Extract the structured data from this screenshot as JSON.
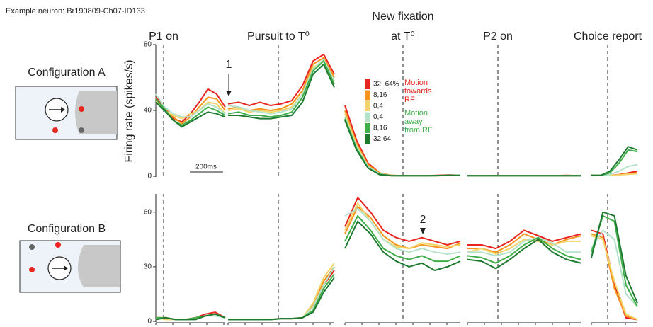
{
  "chart_data": {
    "type": "line",
    "note": "Example neuron: Br190809-Ch07-ID133",
    "ylabel": "Firing rate (spikes/s)",
    "scalebar": "200ms",
    "epochs": [
      {
        "title": [
          "P1 on"
        ]
      },
      {
        "title": [
          "Pursuit to T⁰"
        ]
      },
      {
        "title": [
          "New fixation",
          "at T⁰"
        ]
      },
      {
        "title": [
          "P2 on"
        ]
      },
      {
        "title": [
          "Choice report"
        ]
      }
    ],
    "series": [
      {
        "name": "32, 64%",
        "color": "#e8251f"
      },
      {
        "name": "8,16",
        "color": "#f7941d"
      },
      {
        "name": "0,4",
        "color": "#f3d46a"
      },
      {
        "name": "0,4",
        "color": "#b3e2c8"
      },
      {
        "name": "8,16",
        "color": "#3fae49"
      },
      {
        "name": "32,64",
        "color": "#1d7a30"
      }
    ],
    "legend_groups": [
      {
        "lines": [
          "Motion",
          "towards",
          "RF"
        ],
        "color": "#e8251f"
      },
      {
        "lines": [
          "Motion",
          "away",
          "from RF"
        ],
        "color": "#3fae49"
      }
    ],
    "annotations": [
      "1",
      "2"
    ],
    "rows": [
      {
        "label": "Configuration A",
        "ylim": [
          0,
          80
        ],
        "yticks": [
          0,
          40,
          80
        ],
        "panels": [
          [
            [
              48,
              42,
              35,
              33,
              38,
              45,
              53,
              50,
              42
            ],
            [
              47,
              41,
              36,
              32,
              36,
              42,
              48,
              47,
              40
            ],
            [
              46,
              40,
              37,
              35,
              38,
              40,
              45,
              44,
              38
            ],
            [
              50,
              42,
              38,
              36,
              36,
              40,
              44,
              42,
              38
            ],
            [
              47,
              41,
              34,
              31,
              34,
              38,
              42,
              40,
              37
            ],
            [
              45,
              40,
              34,
              30,
              33,
              36,
              39,
              38,
              36
            ]
          ],
          [
            [
              44,
              45,
              43,
              45,
              43,
              44,
              46,
              55,
              70,
              74,
              62
            ],
            [
              41,
              42,
              40,
              41,
              40,
              41,
              44,
              52,
              68,
              72,
              60
            ],
            [
              40,
              41,
              39,
              40,
              39,
              40,
              42,
              50,
              66,
              70,
              58
            ],
            [
              43,
              42,
              40,
              39,
              38,
              39,
              41,
              50,
              65,
              71,
              58
            ],
            [
              38,
              39,
              37,
              37,
              36,
              37,
              39,
              48,
              64,
              70,
              56
            ],
            [
              37,
              37,
              36,
              35,
              35,
              36,
              37,
              45,
              62,
              68,
              54
            ]
          ],
          [
            [
              43,
              22,
              8,
              2,
              0.5,
              0.3,
              0.3,
              0.3,
              0.5,
              0.8,
              0.5
            ],
            [
              40,
              20,
              7,
              2,
              0.5,
              0.3,
              0.3,
              0.3,
              0.4,
              0.5,
              0.5
            ],
            [
              38,
              19,
              6,
              1.5,
              0.4,
              0.3,
              0.3,
              0.3,
              0.4,
              0.5,
              0.5
            ],
            [
              36,
              18,
              6,
              1.5,
              0.4,
              0.3,
              0.3,
              0.3,
              0.4,
              0.5,
              0.5
            ],
            [
              35,
              17,
              5,
              1.2,
              0.4,
              0.3,
              0.3,
              0.3,
              0.4,
              0.5,
              0.5
            ],
            [
              34,
              16,
              5,
              1,
              0.3,
              0.3,
              0.3,
              0.3,
              0.4,
              0.5,
              0.5
            ]
          ],
          [
            [
              0.3,
              0.4,
              0.3,
              0.3,
              0.4,
              0.3,
              0.3,
              0.5,
              0.3
            ],
            [
              0.3,
              0.3,
              0.3,
              0.4,
              0.3,
              0.3,
              0.4,
              0.3,
              0.3
            ],
            [
              0.3,
              0.3,
              0.3,
              0.3,
              0.3,
              0.3,
              0.3,
              0.3,
              0.3
            ],
            [
              0.3,
              0.3,
              0.3,
              0.3,
              0.3,
              0.3,
              0.3,
              0.3,
              0.3
            ],
            [
              0.3,
              0.3,
              0.3,
              0.3,
              0.3,
              0.3,
              0.3,
              0.3,
              0.3
            ],
            [
              0.3,
              0.3,
              0.3,
              0.3,
              0.3,
              0.3,
              0.3,
              0.3,
              0.3
            ]
          ],
          [
            [
              0.5,
              0.5,
              0.5,
              1,
              2,
              3
            ],
            [
              0.5,
              0.5,
              0.5,
              0.8,
              1.5,
              2
            ],
            [
              0.5,
              0.5,
              0.5,
              0.8,
              1.2,
              1.5
            ],
            [
              0.5,
              0.5,
              1,
              3,
              6,
              7
            ],
            [
              0.5,
              0.5,
              2,
              8,
              16,
              15
            ],
            [
              0.5,
              0.5,
              3,
              10,
              18,
              16
            ]
          ]
        ]
      },
      {
        "label": "Configuration B",
        "ylim": [
          0,
          70
        ],
        "yticks": [
          0,
          30,
          60
        ],
        "panels": [
          [
            [
              2,
              2,
              1,
              1,
              2,
              4,
              5,
              2
            ],
            [
              2,
              2,
              1,
              1,
              2,
              3,
              4,
              2
            ],
            [
              2,
              1,
              1,
              1,
              2,
              3,
              4,
              2
            ],
            [
              1,
              2,
              1,
              1,
              1,
              3,
              3,
              2
            ],
            [
              2,
              2,
              1,
              1,
              2,
              3,
              4,
              2
            ],
            [
              1,
              2,
              1,
              1,
              1,
              3,
              4,
              2
            ]
          ],
          [
            [
              1,
              1,
              1,
              1,
              1,
              1.5,
              1.5,
              2,
              8,
              20,
              28
            ],
            [
              1,
              1,
              1,
              1,
              1,
              1.5,
              1.5,
              2,
              9,
              22,
              30
            ],
            [
              1,
              1,
              1,
              1,
              1,
              1.5,
              1.5,
              2,
              10,
              24,
              32
            ],
            [
              1,
              1,
              1,
              1,
              1,
              1.5,
              1.5,
              2,
              8,
              20,
              30
            ],
            [
              1,
              1,
              1,
              1,
              1,
              1.5,
              1.5,
              2,
              6,
              18,
              26
            ],
            [
              1,
              1,
              1,
              1,
              1,
              1.5,
              1.5,
              2,
              5,
              16,
              24
            ]
          ],
          [
            [
              52,
              68,
              60,
              50,
              46,
              44,
              46,
              44,
              42,
              44
            ],
            [
              48,
              63,
              57,
              47,
              42,
              40,
              42,
              41,
              40,
              43
            ],
            [
              50,
              65,
              55,
              45,
              41,
              40,
              43,
              42,
              41,
              42
            ],
            [
              58,
              62,
              55,
              45,
              40,
              38,
              40,
              38,
              37,
              38
            ],
            [
              44,
              58,
              50,
              40,
              36,
              34,
              36,
              33,
              33,
              36
            ],
            [
              40,
              55,
              48,
              38,
              33,
              30,
              32,
              28,
              30,
              33
            ]
          ],
          [
            [
              42,
              42,
              40,
              44,
              50,
              47,
              44,
              46,
              48
            ],
            [
              40,
              40,
              38,
              42,
              48,
              45,
              42,
              45,
              47
            ],
            [
              38,
              40,
              37,
              40,
              45,
              44,
              42,
              44,
              44
            ],
            [
              38,
              38,
              36,
              38,
              44,
              46,
              43,
              38,
              38
            ],
            [
              36,
              35,
              32,
              36,
              42,
              46,
              40,
              36,
              34
            ],
            [
              34,
              33,
              29,
              34,
              40,
              45,
              38,
              34,
              32
            ]
          ],
          [
            [
              50,
              48,
              20,
              2,
              1
            ],
            [
              48,
              46,
              18,
              3,
              1
            ],
            [
              47,
              45,
              22,
              4,
              1
            ],
            [
              40,
              50,
              45,
              15,
              8
            ],
            [
              38,
              58,
              55,
              20,
              8
            ],
            [
              35,
              60,
              58,
              25,
              10
            ]
          ]
        ]
      }
    ]
  }
}
